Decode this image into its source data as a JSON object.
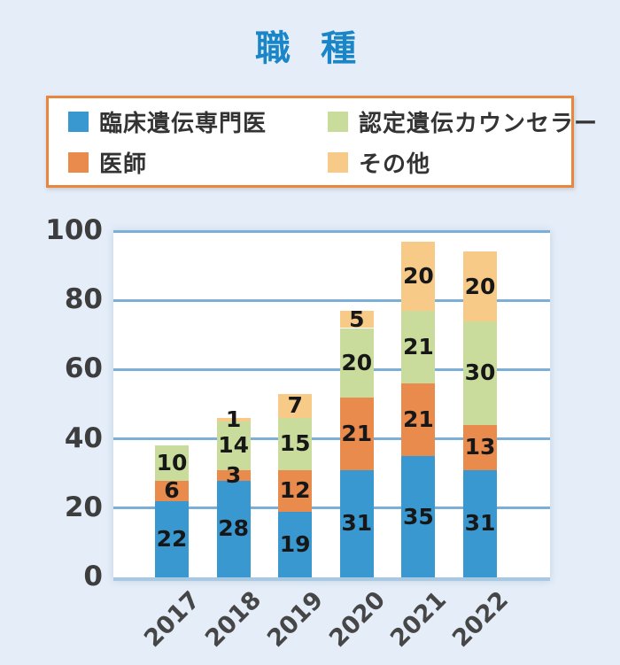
{
  "title": "職 種",
  "legend": {
    "items": [
      {
        "label": "臨床遺伝専門医",
        "color": "#3a98d1"
      },
      {
        "label": "認定遺伝カウンセラー",
        "color": "#cadc9b"
      },
      {
        "label": "医師",
        "color": "#e88b4d"
      },
      {
        "label": "その他",
        "color": "#f7ca87"
      }
    ],
    "border_color": "#e8863f"
  },
  "chart_data": {
    "type": "bar",
    "stacked": true,
    "title": "職 種",
    "categories": [
      "2017",
      "2018",
      "2019",
      "2020",
      "2021",
      "2022"
    ],
    "series": [
      {
        "name": "臨床遺伝専門医",
        "color": "#3a98d1",
        "values": [
          22,
          28,
          19,
          31,
          35,
          31
        ]
      },
      {
        "name": "医師",
        "color": "#e88b4d",
        "values": [
          6,
          3,
          12,
          21,
          21,
          13
        ]
      },
      {
        "name": "認定遺伝カウンセラー",
        "color": "#cadc9b",
        "values": [
          10,
          14,
          15,
          20,
          21,
          30
        ]
      },
      {
        "name": "その他",
        "color": "#f7ca87",
        "values": [
          0,
          1,
          7,
          5,
          20,
          20
        ]
      }
    ],
    "totals": [
      38,
      46,
      53,
      77,
      97,
      94
    ],
    "xlabel": "",
    "ylabel": "",
    "ylim": [
      0,
      100
    ],
    "yticks": [
      0,
      20,
      40,
      60,
      80,
      100
    ],
    "grid": true,
    "gridline_color": "#7bafd8",
    "baseline_color": "#a9c8e3",
    "plot_background": "#ffffff",
    "page_background": "#e4edf8",
    "title_color": "#1a86c8",
    "legend_position": "top",
    "data_labels": true
  }
}
